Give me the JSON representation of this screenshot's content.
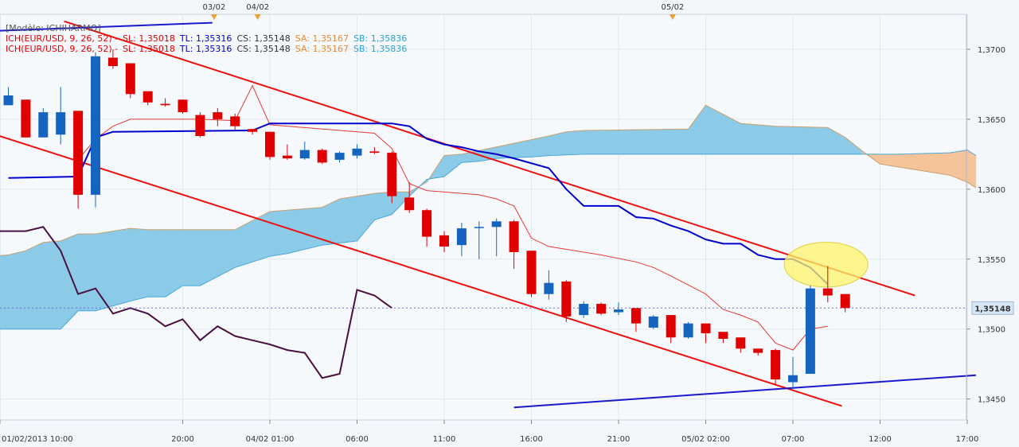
{
  "legend": {
    "model": "[Modèle: ICHIHARMO]",
    "lines": [
      {
        "ich": "ICH(EUR/USD, 9, 26, 52) -",
        "sl": "SL: 1,35018",
        "tl": "TL: 1,35316",
        "cs": "CS: 1,35148",
        "sa": "SA: 1,35167",
        "sb": "SB: 1,35836"
      },
      {
        "ich": "ICH(EUR/USD, 9, 26, 52) -",
        "sl": "SL: 1,35018",
        "tl": "TL: 1,35316",
        "cs": "CS: 1,35148",
        "sa": "SA: 1,35167",
        "sb": "SB: 1,35836"
      }
    ]
  },
  "colors": {
    "up": "#1565c0",
    "down": "#e00000",
    "tenkan": "#e53935",
    "kijun": "#0000cc",
    "chikou": "#4a1040",
    "cloud_bull": "#8ccbe8",
    "cloud_bear": "#f5c49a",
    "trend_red": "#ee1111",
    "trend_blue": "#1a1acc",
    "price_tag": "#d6e6f5"
  },
  "chart_data": {
    "type": "candlestick",
    "symbol": "EUR/USD",
    "ylim": [
      1.3435,
      1.3725
    ],
    "yticks": [
      "1,3450",
      "1,3500",
      "1,3550",
      "1,3600",
      "1,3650",
      "1,3700"
    ],
    "current_price": "1,35148",
    "xticks": [
      "01/02/2013 10:00",
      "20:00",
      "04/02 01:00",
      "06:00",
      "11:00",
      "16:00",
      "21:00",
      "05/02 02:00",
      "07:00",
      "12:00",
      "17:00"
    ],
    "top_markers": [
      "03/02",
      "04/02",
      "05/02"
    ],
    "candles": [
      {
        "o": 1.366,
        "h": 1.3673,
        "l": 1.366,
        "c": 1.3667
      },
      {
        "o": 1.3664,
        "h": 1.3664,
        "l": 1.3637,
        "c": 1.3637
      },
      {
        "o": 1.3637,
        "h": 1.3658,
        "l": 1.3637,
        "c": 1.3655
      },
      {
        "o": 1.3639,
        "h": 1.3673,
        "l": 1.3632,
        "c": 1.3655
      },
      {
        "o": 1.3656,
        "h": 1.3656,
        "l": 1.3586,
        "c": 1.3596
      },
      {
        "o": 1.3596,
        "h": 1.3698,
        "l": 1.3587,
        "c": 1.3695
      },
      {
        "o": 1.3694,
        "h": 1.37,
        "l": 1.3686,
        "c": 1.3688
      },
      {
        "o": 1.369,
        "h": 1.369,
        "l": 1.3665,
        "c": 1.3668
      },
      {
        "o": 1.367,
        "h": 1.367,
        "l": 1.366,
        "c": 1.3662
      },
      {
        "o": 1.3661,
        "h": 1.3665,
        "l": 1.3659,
        "c": 1.366
      },
      {
        "o": 1.3664,
        "h": 1.3664,
        "l": 1.3654,
        "c": 1.3655
      },
      {
        "o": 1.3653,
        "h": 1.3655,
        "l": 1.3637,
        "c": 1.3638
      },
      {
        "o": 1.3655,
        "h": 1.3658,
        "l": 1.3645,
        "c": 1.365
      },
      {
        "o": 1.3652,
        "h": 1.3654,
        "l": 1.3642,
        "c": 1.3645
      },
      {
        "o": 1.3643,
        "h": 1.3643,
        "l": 1.3639,
        "c": 1.3641
      },
      {
        "o": 1.3641,
        "h": 1.3641,
        "l": 1.3621,
        "c": 1.3623
      },
      {
        "o": 1.3624,
        "h": 1.3632,
        "l": 1.3621,
        "c": 1.3622
      },
      {
        "o": 1.3622,
        "h": 1.3634,
        "l": 1.3621,
        "c": 1.3628
      },
      {
        "o": 1.3628,
        "h": 1.3629,
        "l": 1.3618,
        "c": 1.3619
      },
      {
        "o": 1.3621,
        "h": 1.3627,
        "l": 1.3619,
        "c": 1.3626
      },
      {
        "o": 1.3624,
        "h": 1.3632,
        "l": 1.3622,
        "c": 1.3629
      },
      {
        "o": 1.3627,
        "h": 1.363,
        "l": 1.3625,
        "c": 1.3626
      },
      {
        "o": 1.3626,
        "h": 1.3627,
        "l": 1.359,
        "c": 1.3595
      },
      {
        "o": 1.3594,
        "h": 1.3605,
        "l": 1.3583,
        "c": 1.3585
      },
      {
        "o": 1.3585,
        "h": 1.3586,
        "l": 1.3559,
        "c": 1.3566
      },
      {
        "o": 1.3567,
        "h": 1.357,
        "l": 1.3555,
        "c": 1.3559
      },
      {
        "o": 1.356,
        "h": 1.3576,
        "l": 1.3552,
        "c": 1.3572
      },
      {
        "o": 1.3573,
        "h": 1.3577,
        "l": 1.355,
        "c": 1.3573
      },
      {
        "o": 1.3573,
        "h": 1.3579,
        "l": 1.3552,
        "c": 1.3577
      },
      {
        "o": 1.3577,
        "h": 1.3578,
        "l": 1.3543,
        "c": 1.3555
      },
      {
        "o": 1.3556,
        "h": 1.3556,
        "l": 1.3523,
        "c": 1.3525
      },
      {
        "o": 1.3525,
        "h": 1.3542,
        "l": 1.3521,
        "c": 1.3533
      },
      {
        "o": 1.3534,
        "h": 1.3535,
        "l": 1.3505,
        "c": 1.3509
      },
      {
        "o": 1.351,
        "h": 1.352,
        "l": 1.3508,
        "c": 1.3518
      },
      {
        "o": 1.3518,
        "h": 1.3519,
        "l": 1.351,
        "c": 1.3511
      },
      {
        "o": 1.3512,
        "h": 1.3519,
        "l": 1.351,
        "c": 1.3514
      },
      {
        "o": 1.3515,
        "h": 1.3515,
        "l": 1.3498,
        "c": 1.3504
      },
      {
        "o": 1.3501,
        "h": 1.351,
        "l": 1.35,
        "c": 1.3509
      },
      {
        "o": 1.351,
        "h": 1.351,
        "l": 1.349,
        "c": 1.3494
      },
      {
        "o": 1.3494,
        "h": 1.3505,
        "l": 1.3493,
        "c": 1.3504
      },
      {
        "o": 1.3504,
        "h": 1.3504,
        "l": 1.349,
        "c": 1.3497
      },
      {
        "o": 1.3498,
        "h": 1.3498,
        "l": 1.349,
        "c": 1.3493
      },
      {
        "o": 1.3494,
        "h": 1.3494,
        "l": 1.3483,
        "c": 1.3486
      },
      {
        "o": 1.3486,
        "h": 1.3486,
        "l": 1.3481,
        "c": 1.3483
      },
      {
        "o": 1.3485,
        "h": 1.3486,
        "l": 1.346,
        "c": 1.3464
      },
      {
        "o": 1.3462,
        "h": 1.348,
        "l": 1.3457,
        "c": 1.3467
      },
      {
        "o": 1.3468,
        "h": 1.3531,
        "l": 1.3468,
        "c": 1.3529
      },
      {
        "o": 1.3529,
        "h": 1.3545,
        "l": 1.3519,
        "c": 1.3524
      },
      {
        "o": 1.3525,
        "h": 1.3525,
        "l": 1.3512,
        "c": 1.3515
      }
    ],
    "kijun": [
      [
        0,
        1.3608
      ],
      [
        4,
        1.3609
      ],
      [
        5,
        1.3637
      ],
      [
        6,
        1.3641
      ],
      [
        14,
        1.3642
      ],
      [
        15,
        1.3647
      ],
      [
        22,
        1.3647
      ],
      [
        23,
        1.3645
      ],
      [
        24,
        1.3636
      ],
      [
        25,
        1.3632
      ],
      [
        26,
        1.363
      ],
      [
        27,
        1.3627
      ],
      [
        28,
        1.3625
      ],
      [
        29,
        1.3622
      ],
      [
        31,
        1.3615
      ],
      [
        32,
        1.36
      ],
      [
        33,
        1.3588
      ],
      [
        35,
        1.3588
      ],
      [
        36,
        1.358
      ],
      [
        37,
        1.3579
      ],
      [
        38,
        1.3574
      ],
      [
        39,
        1.357
      ],
      [
        40,
        1.3564
      ],
      [
        41,
        1.3561
      ],
      [
        42,
        1.3561
      ],
      [
        43,
        1.3553
      ],
      [
        44,
        1.355
      ],
      [
        45,
        1.355
      ],
      [
        46,
        1.3544
      ],
      [
        47,
        1.3532
      ]
    ],
    "tenkan": [
      [
        4,
        1.3621
      ],
      [
        5,
        1.3636
      ],
      [
        6,
        1.3645
      ],
      [
        7,
        1.365
      ],
      [
        11,
        1.365
      ],
      [
        13,
        1.3649
      ],
      [
        14,
        1.3674
      ],
      [
        15,
        1.3646
      ],
      [
        21,
        1.364
      ],
      [
        22,
        1.3629
      ],
      [
        23,
        1.3604
      ],
      [
        24,
        1.3599
      ],
      [
        27,
        1.3596
      ],
      [
        28,
        1.3593
      ],
      [
        29,
        1.3588
      ],
      [
        30,
        1.3565
      ],
      [
        31,
        1.3559
      ],
      [
        33,
        1.3555
      ],
      [
        34,
        1.3553
      ],
      [
        36,
        1.3548
      ],
      [
        37,
        1.3544
      ],
      [
        38,
        1.3538
      ],
      [
        40,
        1.3525
      ],
      [
        41,
        1.3514
      ],
      [
        42,
        1.351
      ],
      [
        43,
        1.3505
      ],
      [
        44,
        1.349
      ],
      [
        45,
        1.3485
      ],
      [
        46,
        1.35
      ],
      [
        47,
        1.3502
      ]
    ],
    "senkou_a": [
      [
        -1,
        1.3552
      ],
      [
        0,
        1.3553
      ],
      [
        1,
        1.3556
      ],
      [
        2,
        1.3562
      ],
      [
        3,
        1.3563
      ],
      [
        4,
        1.3568
      ],
      [
        5,
        1.3568
      ],
      [
        7,
        1.3572
      ],
      [
        8,
        1.3571
      ],
      [
        13,
        1.3571
      ],
      [
        15,
        1.3584
      ],
      [
        16,
        1.3585
      ],
      [
        18,
        1.3587
      ],
      [
        19,
        1.3593
      ],
      [
        20,
        1.3595
      ],
      [
        21,
        1.3597
      ],
      [
        22,
        1.3598
      ],
      [
        23,
        1.3598
      ],
      [
        24,
        1.3605
      ],
      [
        25,
        1.3624
      ],
      [
        26,
        1.3625
      ],
      [
        31,
        1.3638
      ],
      [
        32,
        1.3641
      ],
      [
        33,
        1.3642
      ],
      [
        39,
        1.3643
      ],
      [
        40,
        1.366
      ],
      [
        42,
        1.3647
      ],
      [
        44,
        1.3645
      ],
      [
        47,
        1.3644
      ],
      [
        48,
        1.3637
      ],
      [
        49,
        1.3627
      ],
      [
        50,
        1.3618
      ],
      [
        51,
        1.3616
      ],
      [
        53,
        1.3612
      ],
      [
        54,
        1.361
      ],
      [
        55,
        1.3605
      ],
      [
        55.5,
        1.3601
      ]
    ],
    "senkou_b": [
      [
        -1,
        1.35
      ],
      [
        3,
        1.35
      ],
      [
        4,
        1.3513
      ],
      [
        5,
        1.3513
      ],
      [
        7,
        1.352
      ],
      [
        8,
        1.3523
      ],
      [
        9,
        1.3523
      ],
      [
        10,
        1.3531
      ],
      [
        11,
        1.3531
      ],
      [
        13,
        1.3544
      ],
      [
        14,
        1.3548
      ],
      [
        15,
        1.3552
      ],
      [
        16,
        1.3554
      ],
      [
        18,
        1.356
      ],
      [
        20,
        1.3563
      ],
      [
        21,
        1.3578
      ],
      [
        22,
        1.3582
      ],
      [
        23,
        1.3595
      ],
      [
        24,
        1.3607
      ],
      [
        25,
        1.3609
      ],
      [
        26,
        1.3619
      ],
      [
        27,
        1.362
      ],
      [
        28,
        1.3622
      ],
      [
        30,
        1.3623
      ],
      [
        31,
        1.3624
      ],
      [
        33,
        1.3625
      ],
      [
        49,
        1.3625
      ],
      [
        51,
        1.3625
      ],
      [
        54,
        1.3626
      ],
      [
        55,
        1.3628
      ],
      [
        55.5,
        1.3624
      ]
    ],
    "chikou": [
      [
        -1,
        1.357
      ],
      [
        1,
        1.357
      ],
      [
        2,
        1.3573
      ],
      [
        3,
        1.3556
      ],
      [
        4,
        1.3525
      ],
      [
        5,
        1.3529
      ],
      [
        6,
        1.3511
      ],
      [
        7,
        1.3515
      ],
      [
        8,
        1.3511
      ],
      [
        9,
        1.3502
      ],
      [
        10,
        1.3507
      ],
      [
        11,
        1.3492
      ],
      [
        12,
        1.3502
      ],
      [
        13,
        1.3495
      ],
      [
        14,
        1.3492
      ],
      [
        15,
        1.3489
      ],
      [
        16,
        1.3485
      ],
      [
        17,
        1.3483
      ],
      [
        18,
        1.3465
      ],
      [
        19,
        1.3468
      ],
      [
        20,
        1.3528
      ],
      [
        21,
        1.3524
      ],
      [
        22,
        1.3515
      ]
    ],
    "trend_red_upper": [
      [
        3.2,
        1.372
      ],
      [
        52,
        1.3524
      ]
    ],
    "trend_red_lower": [
      [
        -1,
        1.364
      ],
      [
        47.8,
        1.3445
      ]
    ],
    "trend_blue_lower": [
      [
        29,
        1.3444
      ],
      [
        55.5,
        1.3467
      ]
    ],
    "trend_blue_upper": [
      [
        -1,
        1.3713
      ],
      [
        11.7,
        1.3719
      ]
    ],
    "highlight_ellipse": {
      "cx": 46.9,
      "cy": 1.3546,
      "rx": 2.4,
      "ry": 0.0016
    },
    "current_line": 1.3515
  }
}
